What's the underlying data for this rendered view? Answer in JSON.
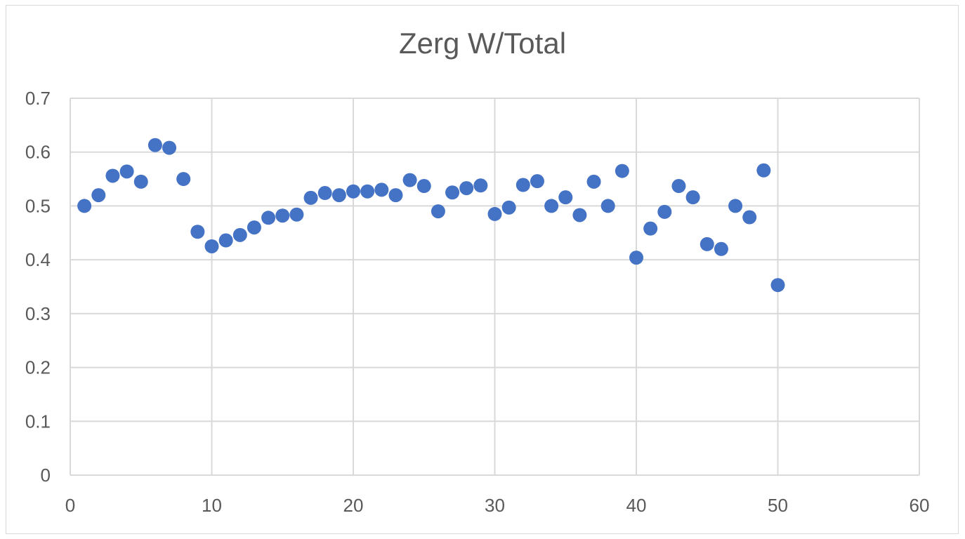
{
  "chart_data": {
    "type": "scatter",
    "title": "Zerg W/Total",
    "xlabel": "",
    "ylabel": "",
    "xlim": [
      0,
      60
    ],
    "ylim": [
      0,
      0.7
    ],
    "x_ticks": [
      "0",
      "10",
      "20",
      "30",
      "40",
      "50",
      "60"
    ],
    "y_ticks": [
      "0",
      "0.1",
      "0.2",
      "0.3",
      "0.4",
      "0.5",
      "0.6",
      "0.7"
    ],
    "grid": true,
    "legend": "none",
    "marker_color": "#4472c4",
    "series": [
      {
        "x": [
          1,
          2,
          3,
          4,
          5,
          6,
          7,
          8,
          9,
          10,
          11,
          12,
          13,
          14,
          15,
          16,
          17,
          18,
          19,
          20,
          21,
          22,
          23,
          24,
          25,
          26,
          27,
          28,
          29,
          30,
          31,
          32,
          33,
          34,
          35,
          36,
          37,
          38,
          39,
          40,
          41,
          42,
          43,
          44,
          45,
          46,
          47,
          48,
          49,
          50
        ],
        "y": [
          0.5,
          0.52,
          0.556,
          0.564,
          0.545,
          0.613,
          0.608,
          0.55,
          0.452,
          0.425,
          0.436,
          0.446,
          0.46,
          0.478,
          0.482,
          0.484,
          0.515,
          0.524,
          0.52,
          0.527,
          0.527,
          0.53,
          0.52,
          0.548,
          0.537,
          0.49,
          0.525,
          0.533,
          0.538,
          0.485,
          0.497,
          0.539,
          0.546,
          0.5,
          0.516,
          0.483,
          0.545,
          0.5,
          0.565,
          0.404,
          0.458,
          0.489,
          0.537,
          0.516,
          0.429,
          0.42,
          0.5,
          0.479,
          0.566,
          0.353
        ]
      }
    ]
  }
}
